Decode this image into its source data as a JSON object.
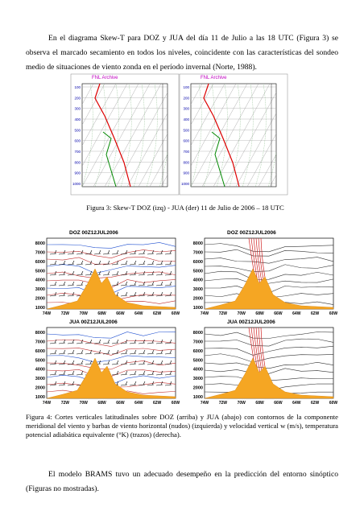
{
  "paragraphs": [
    "En el diagrama Skew-T para DOZ y JUA del día 11 de Julio a las 18 UTC (Figura 3) se observa el marcado secamiento en todos los niveles, coincidente con las características del sondeo medio de situaciones de viento zonda en el período invernal (Norte, 1988).",
    "El modelo BRAMS tuvo un adecuado desempeño en la predicción del entorno sinóptico (Figuras no mostradas)."
  ],
  "figure_3": {
    "panel_title": "FNL Archive",
    "pressure_levels": [
      100,
      200,
      300,
      400,
      500,
      600,
      700,
      800,
      900,
      1000
    ],
    "caption": "Figura 3: Skew-T DOZ (izq)  - JUA (der) 11 de Julio de 2006 – 18 UTC"
  },
  "figure_4": {
    "panels": [
      {
        "title": "DOZ   00Z12JUL2006"
      },
      {
        "title": "DOZ   00Z12JUL2006"
      },
      {
        "title": "JUA   00Z12JUL2006"
      },
      {
        "title": "JUA   00Z12JUL2006"
      }
    ],
    "height_labels": [
      8000,
      7000,
      6000,
      5000,
      4000,
      3000,
      2000,
      1000
    ],
    "longitude_labels": [
      "74W",
      "72W",
      "70W",
      "68W",
      "66W",
      "64W",
      "62W",
      "60W"
    ],
    "caption": "Figura 4: Cortes verticales latitudinales sobre DOZ (arriba) y JUA (abajo) con contornos de la componente meridional del viento y barbas de viento horizontal (nudos) (izquierda) y velocidad vertical w (m/s), temperatura potencial adiabática equivalente (°K) (trazos) (derecha)."
  }
}
